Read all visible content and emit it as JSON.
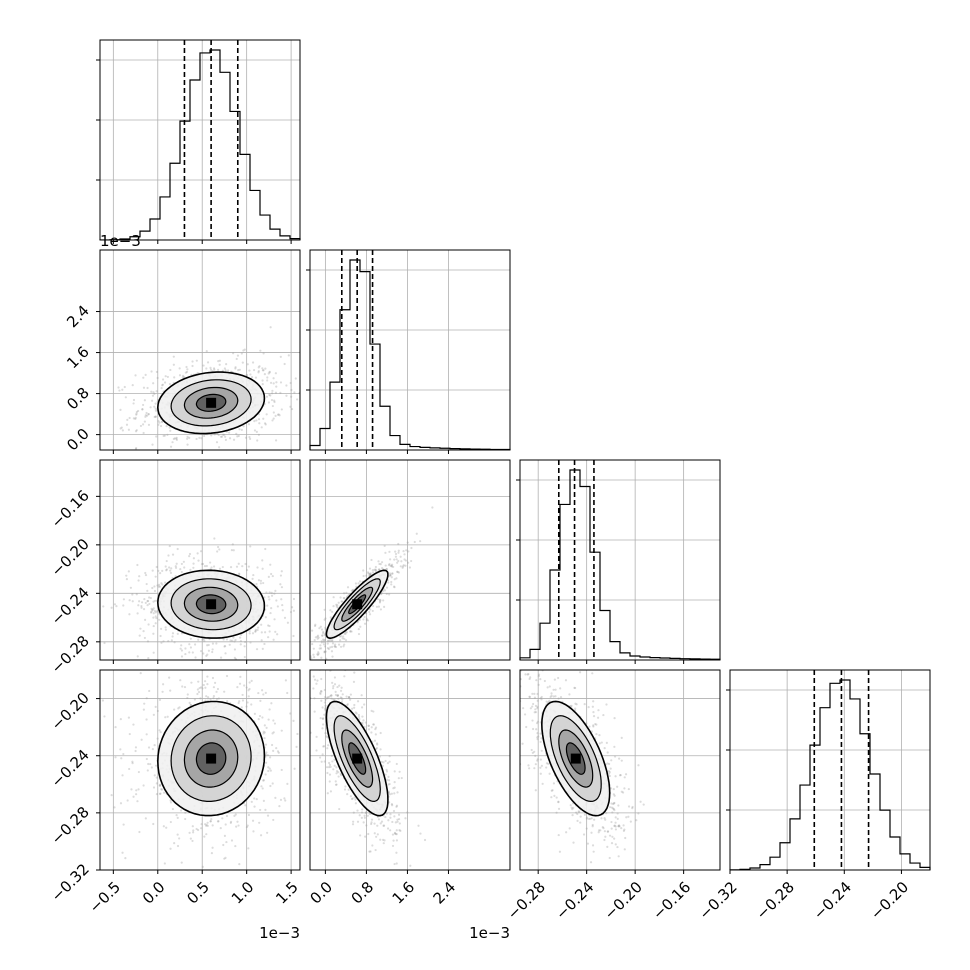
{
  "chart_data": {
    "type": "corner",
    "grid": true,
    "colors": {
      "points": "#9a9a9a",
      "lines": "#000000",
      "grid": "#b0b0b0"
    },
    "variables": [
      {
        "range": [
          -0.65,
          1.6
        ],
        "ticks": [
          -0.5,
          0.0,
          0.5,
          1.0,
          1.5
        ],
        "tick_labels": [
          "−0.5",
          "0.0",
          "0.5",
          "1.0",
          "1.5"
        ],
        "exponent": "1e−3",
        "mean": 0.6,
        "sd": 0.3,
        "quantiles": [
          0.3,
          0.6,
          0.9
        ]
      },
      {
        "range": [
          -0.3,
          3.6
        ],
        "ticks": [
          0.0,
          0.8,
          1.6,
          2.4
        ],
        "tick_labels": [
          "0.0",
          "0.8",
          "1.6",
          "2.4"
        ],
        "exponent": "1e−3",
        "mean": 0.62,
        "sd": 0.3,
        "quantiles": [
          0.32,
          0.62,
          0.92
        ]
      },
      {
        "range": [
          -0.295,
          -0.13
        ],
        "ticks": [
          -0.28,
          -0.24,
          -0.2,
          -0.16
        ],
        "tick_labels": [
          "−0.28",
          "−0.24",
          "−0.20",
          "−0.16"
        ],
        "exponent": "",
        "mean": -0.249,
        "sd": 0.014,
        "quantiles": [
          -0.263,
          -0.25,
          -0.234
        ]
      },
      {
        "range": [
          -0.32,
          -0.18
        ],
        "ticks": [
          -0.32,
          -0.28,
          -0.24,
          -0.2
        ],
        "tick_labels": [
          "−0.32",
          "−0.28",
          "−0.24",
          "−0.20"
        ],
        "exponent": "",
        "mean": -0.242,
        "sd": 0.02,
        "quantiles": [
          -0.261,
          -0.242,
          -0.223
        ]
      }
    ],
    "correlations": [
      {
        "pair": [
          1,
          0
        ],
        "rho": 0.15
      },
      {
        "pair": [
          2,
          0
        ],
        "rho": -0.05
      },
      {
        "pair": [
          2,
          1
        ],
        "rho": 0.88
      },
      {
        "pair": [
          3,
          0
        ],
        "rho": 0.05
      },
      {
        "pair": [
          3,
          1
        ],
        "rho": -0.72
      },
      {
        "pair": [
          3,
          2
        ],
        "rho": -0.6
      }
    ],
    "contour_levels": [
      "0.5σ",
      "1σ",
      "1.5σ",
      "2σ"
    ]
  }
}
